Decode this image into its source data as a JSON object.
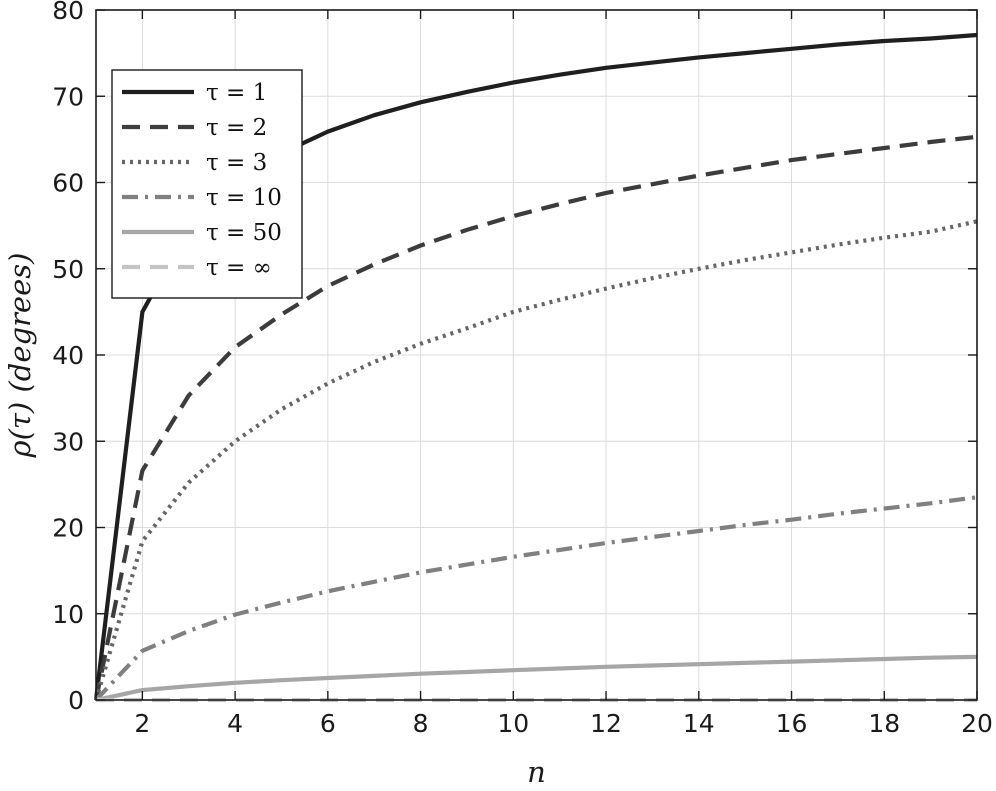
{
  "chart_data": {
    "type": "line",
    "title": "",
    "xlabel": "n",
    "ylabel": "ρ(τ)  (degrees)",
    "xlim": [
      1,
      20
    ],
    "ylim": [
      0,
      80
    ],
    "xticks": [
      2,
      4,
      6,
      8,
      10,
      12,
      14,
      16,
      18,
      20
    ],
    "yticks": [
      0,
      10,
      20,
      30,
      40,
      50,
      60,
      70,
      80
    ],
    "grid": true,
    "legend_position": "top-left",
    "x": [
      1,
      2,
      3,
      4,
      5,
      6,
      7,
      8,
      9,
      10,
      11,
      12,
      13,
      14,
      15,
      16,
      17,
      18,
      19,
      20
    ],
    "series": [
      {
        "name": "τ = 1",
        "style": "solid",
        "color": "#1f1f1f",
        "values": [
          0,
          45,
          54.7,
          60,
          63.4,
          65.9,
          67.8,
          69.3,
          70.5,
          71.6,
          72.5,
          73.3,
          73.9,
          74.5,
          75.0,
          75.5,
          76.0,
          76.4,
          76.7,
          77.1
        ]
      },
      {
        "name": "τ = 2",
        "style": "dashed",
        "color": "#3c3c3c",
        "values": [
          0,
          26.6,
          35.3,
          40.9,
          44.7,
          48.0,
          50.5,
          52.7,
          54.5,
          56.1,
          57.5,
          58.8,
          59.8,
          60.8,
          61.7,
          62.6,
          63.3,
          64.0,
          64.7,
          65.3
        ]
      },
      {
        "name": "τ = 3",
        "style": "dotted",
        "color": "#666666",
        "values": [
          0,
          18.4,
          25.2,
          30.0,
          33.7,
          36.7,
          39.2,
          41.3,
          43.1,
          45.0,
          46.4,
          47.7,
          48.9,
          50.0,
          51.0,
          51.9,
          52.8,
          53.6,
          54.3,
          55.5
        ]
      },
      {
        "name": "τ = 10",
        "style": "dashdot",
        "color": "#808080",
        "values": [
          0,
          5.7,
          8.0,
          9.9,
          11.3,
          12.6,
          13.7,
          14.8,
          15.7,
          16.6,
          17.4,
          18.2,
          18.9,
          19.6,
          20.3,
          20.9,
          21.6,
          22.2,
          22.8,
          23.5
        ]
      },
      {
        "name": "τ = 50",
        "style": "solid",
        "color": "#a6a6a6",
        "values": [
          0,
          1.15,
          1.6,
          2.0,
          2.3,
          2.55,
          2.8,
          3.05,
          3.25,
          3.45,
          3.65,
          3.85,
          4.0,
          4.15,
          4.3,
          4.45,
          4.6,
          4.75,
          4.9,
          5.0
        ]
      },
      {
        "name": "τ = ∞",
        "style": "dashed",
        "color": "#c4c4c4",
        "values": [
          0,
          0,
          0,
          0,
          0,
          0,
          0,
          0,
          0,
          0,
          0,
          0,
          0,
          0,
          0,
          0,
          0,
          0,
          0,
          0
        ]
      }
    ]
  }
}
